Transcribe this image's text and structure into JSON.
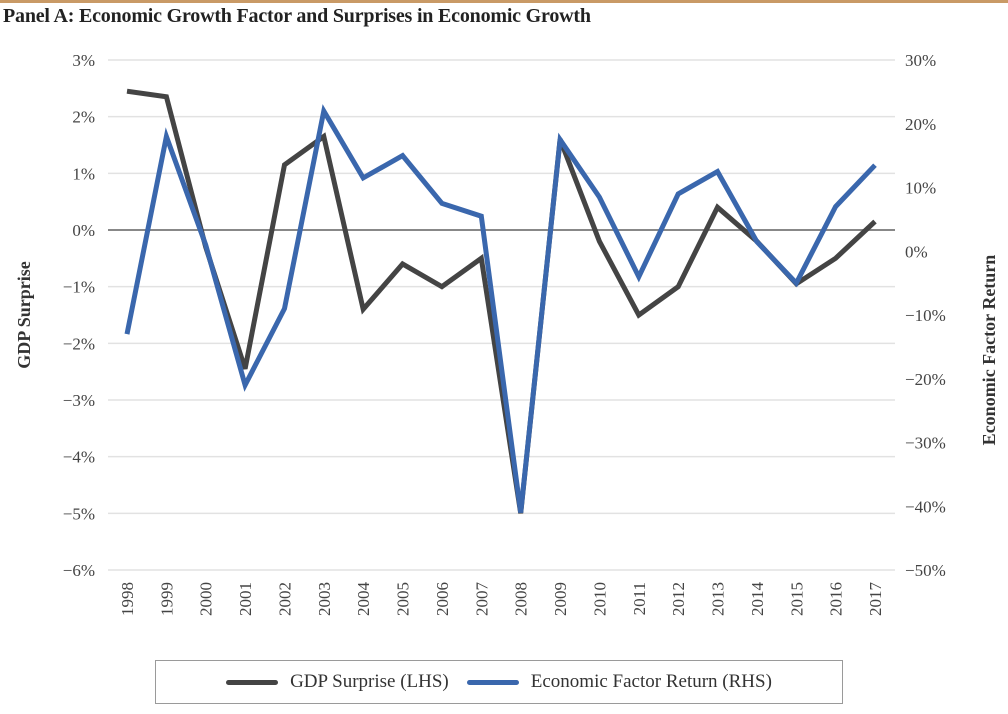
{
  "header": {
    "title": "Panel A: Economic Growth Factor and Surprises in Economic Growth"
  },
  "colors": {
    "gdp": "#444444",
    "factor": "#3a67ad",
    "grid": "#e2e2e2",
    "zero_line": "#888888",
    "rule": "#c99a66"
  },
  "chart_data": {
    "type": "line",
    "title": "Panel A: Economic Growth Factor and Surprises in Economic Growth",
    "xlabel": "",
    "ylabel": "GDP Surprise",
    "ylabel_right": "Economic Factor Return",
    "x": [
      "1998",
      "1999",
      "2000",
      "2001",
      "2002",
      "2003",
      "2004",
      "2005",
      "2006",
      "2007",
      "2008",
      "2009",
      "2010",
      "2011",
      "2012",
      "2013",
      "2014",
      "2015",
      "2016",
      "2017"
    ],
    "ylim": [
      -6,
      3
    ],
    "ylim_right": [
      -50,
      30
    ],
    "yticks": [
      "3%",
      "2%",
      "1%",
      "0%",
      "−1%",
      "−2%",
      "−3%",
      "−4%",
      "−5%",
      "−6%"
    ],
    "yticks_right": [
      "30%",
      "20%",
      "10%",
      "0%",
      "−10%",
      "−20%",
      "−30%",
      "−40%",
      "−50%"
    ],
    "grid": true,
    "legend_position": "bottom",
    "series": [
      {
        "name": "GDP Surprise (LHS)",
        "axis": "left",
        "unit": "%",
        "values": [
          2.45,
          2.35,
          -0.3,
          -2.45,
          1.15,
          1.65,
          -1.4,
          -0.6,
          -1.0,
          -0.5,
          -5.0,
          1.6,
          -0.2,
          -1.5,
          -1.0,
          0.4,
          -0.2,
          -0.95,
          -0.5,
          0.15
        ]
      },
      {
        "name": "Economic Factor Return (RHS)",
        "axis": "right",
        "unit": "%",
        "values": [
          -13,
          18,
          1,
          -21,
          -9,
          22,
          11.5,
          15,
          7.5,
          5.5,
          -41,
          17.5,
          8.5,
          -4,
          9,
          12.5,
          1.5,
          -5,
          7,
          13.5
        ]
      }
    ]
  },
  "legend": {
    "items": [
      {
        "label": "GDP Surprise (LHS)"
      },
      {
        "label": "Economic Factor Return (RHS)"
      }
    ]
  }
}
